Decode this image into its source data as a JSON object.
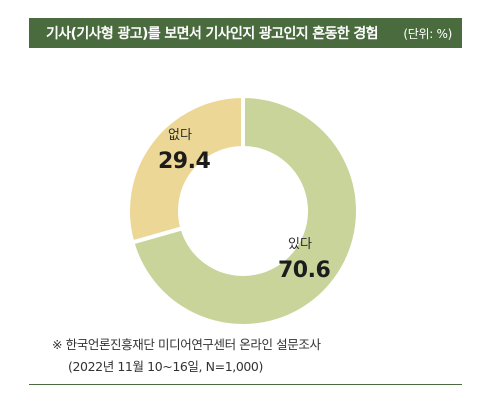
{
  "header": {
    "title": "기사(기사형 광고)를 보면서 기사인지 광고인지 혼동한 경험",
    "unit": "(단위: %)"
  },
  "chart_data": {
    "type": "pie",
    "donut": true,
    "slices": [
      {
        "name": "있다",
        "value": 70.6,
        "color": "#c8d49a"
      },
      {
        "name": "없다",
        "value": 29.4,
        "color": "#ecd796"
      }
    ]
  },
  "footnote": {
    "source": "※ 한국언론진흥재단 미디어연구센터 온라인 설문조사",
    "period": "(2022년 11월 10~16일, N=1,000)"
  },
  "colors": {
    "header_bg": "#4a6b3e"
  }
}
